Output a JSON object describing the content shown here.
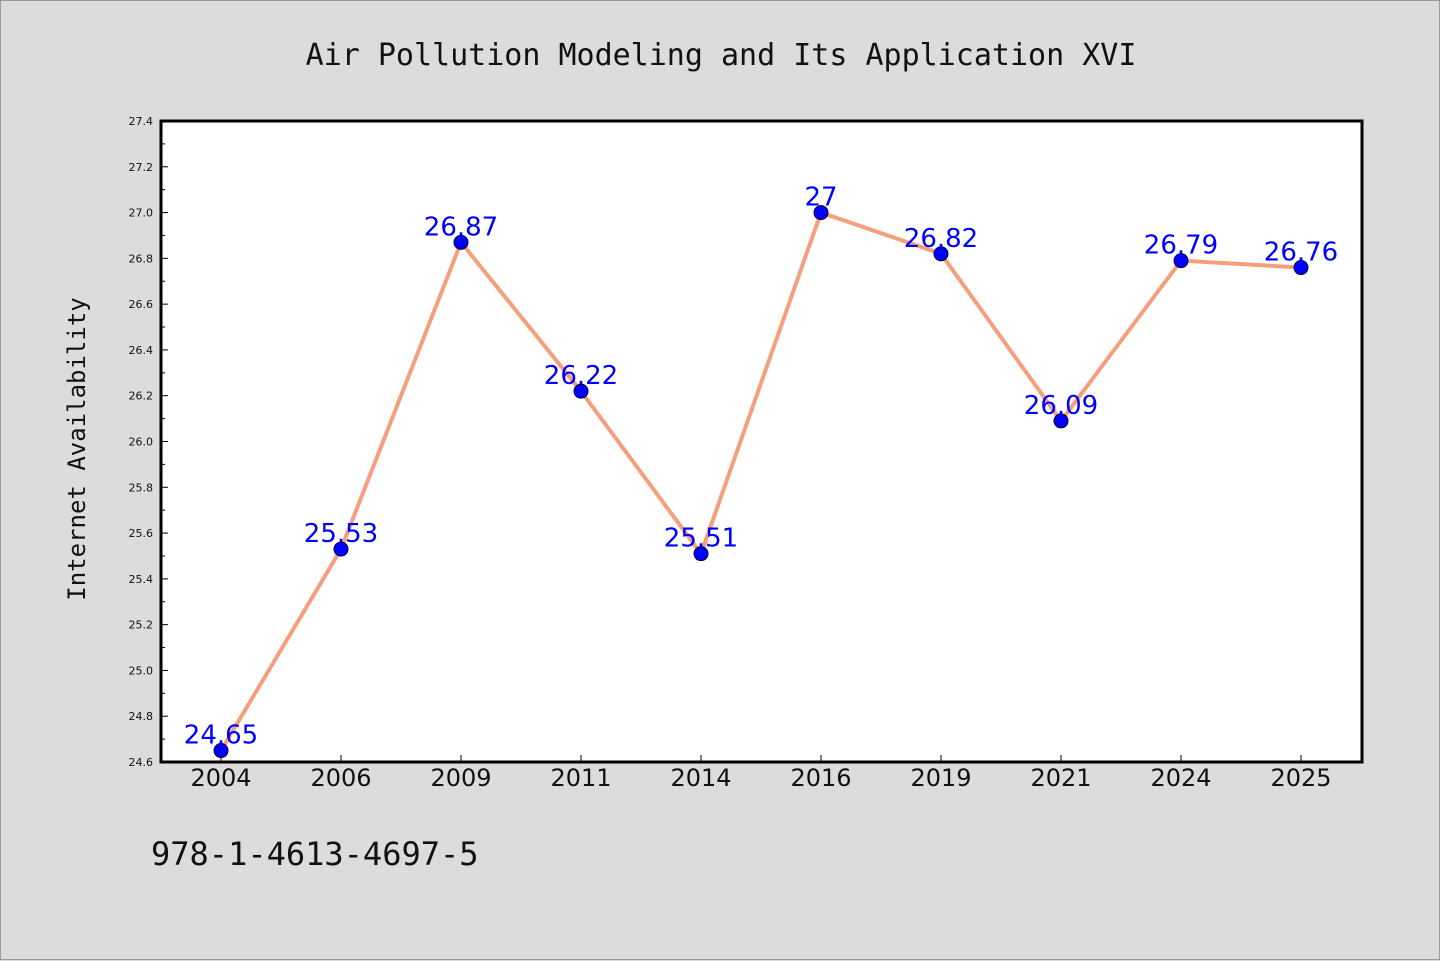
{
  "chart_data": {
    "type": "line",
    "title": "Air Pollution Modeling and Its Application XVI",
    "xlabel": "",
    "ylabel": "Internet Availability",
    "categories": [
      "2004",
      "2006",
      "2009",
      "2011",
      "2014",
      "2016",
      "2019",
      "2021",
      "2024",
      "2025"
    ],
    "values": [
      24.65,
      25.53,
      26.87,
      26.22,
      25.51,
      27,
      26.82,
      26.09,
      26.79,
      26.76
    ],
    "data_labels": [
      "24.65",
      "25.53",
      "26.87",
      "26.22",
      "25.51",
      "27",
      "26.82",
      "26.09",
      "26.79",
      "26.76"
    ],
    "ylim": [
      24.6,
      27.4
    ],
    "y_ticks": [
      "24.6",
      "24.8",
      "25.0",
      "25.2",
      "25.4",
      "25.6",
      "25.8",
      "26.0",
      "26.2",
      "26.4",
      "26.6",
      "26.8",
      "27.0",
      "27.2",
      "27.4"
    ],
    "grid": false,
    "line_color": "#f4a07e",
    "marker_color": "#0000ff",
    "label_color": "#0000ff"
  },
  "footer_text": "978-1-4613-4697-5"
}
